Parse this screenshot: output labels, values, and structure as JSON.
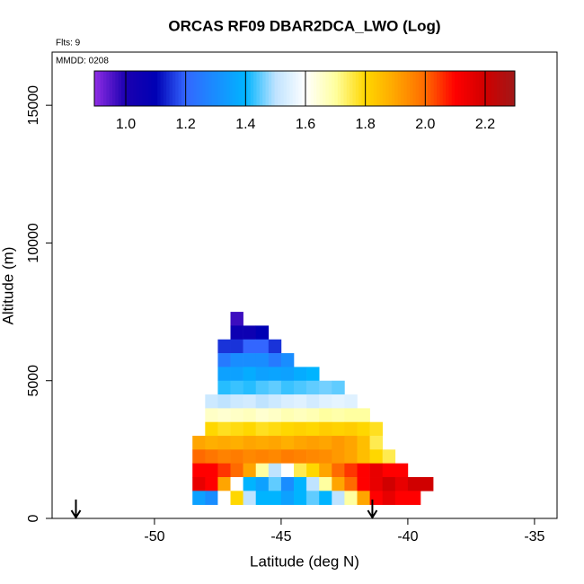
{
  "chart_data": {
    "type": "heatmap",
    "title": "ORCAS RF09 DBAR2DCA_LWO (Log)",
    "flights_label": "Flts: 9",
    "date_label": "MMDD: 0208",
    "x_label": "Latitude (deg N)",
    "y_label": "Altitude (m)",
    "xlim": [
      -54.04,
      -34.11
    ],
    "ylim": [
      0,
      16930
    ],
    "xticks": [
      -50,
      -45,
      -40,
      -35
    ],
    "yticks": [
      0,
      5000,
      10000,
      15000
    ],
    "cell_width": 0.5,
    "cell_height": 500,
    "rows": [
      {
        "altitude": 7000,
        "lat_start": -47.0,
        "values": [
          0.97
        ]
      },
      {
        "altitude": 6500,
        "lat_start": -47.0,
        "values": [
          1.05,
          1.05,
          1.1
        ]
      },
      {
        "altitude": 6000,
        "lat_start": -47.5,
        "values": [
          1.15,
          1.15,
          1.2,
          1.2,
          1.15
        ]
      },
      {
        "altitude": 5500,
        "lat_start": -47.5,
        "values": [
          1.25,
          1.3,
          1.3,
          1.3,
          1.25,
          1.3
        ]
      },
      {
        "altitude": 5000,
        "lat_start": -47.5,
        "values": [
          1.35,
          1.35,
          1.38,
          1.35,
          1.36,
          1.35,
          1.38,
          1.4
        ]
      },
      {
        "altitude": 4500,
        "lat_start": -47.5,
        "values": [
          1.42,
          1.43,
          1.42,
          1.44,
          1.45,
          1.43,
          1.44,
          1.45,
          1.46,
          1.45
        ]
      },
      {
        "altitude": 4000,
        "lat_start": -48.0,
        "values": [
          1.52,
          1.5,
          1.52,
          1.53,
          1.5,
          1.52,
          1.54,
          1.55,
          1.53,
          1.55,
          1.56,
          1.55
        ]
      },
      {
        "altitude": 3500,
        "lat_start": -48.0,
        "values": [
          1.66,
          1.65,
          1.66,
          1.67,
          1.65,
          1.66,
          1.68,
          1.67,
          1.68,
          1.7,
          1.69,
          1.7,
          1.7
        ]
      },
      {
        "altitude": 3000,
        "lat_start": -48.0,
        "values": [
          1.8,
          1.78,
          1.79,
          1.8,
          1.78,
          1.79,
          1.8,
          1.81,
          1.8,
          1.82,
          1.81,
          1.82,
          1.8,
          1.78
        ]
      },
      {
        "altitude": 2500,
        "lat_start": -48.5,
        "values": [
          1.9,
          1.88,
          1.89,
          1.88,
          1.9,
          1.89,
          1.9,
          1.88,
          1.9,
          1.91,
          1.9,
          1.92,
          1.9,
          1.85,
          1.75
        ]
      },
      {
        "altitude": 2000,
        "lat_start": -48.5,
        "values": [
          2.0,
          1.98,
          1.96,
          1.97,
          1.95,
          1.96,
          1.95,
          1.97,
          1.96,
          1.95,
          1.94,
          1.92,
          1.9,
          1.85,
          1.8,
          1.75
        ]
      },
      {
        "altitude": 1500,
        "lat_start": -48.5,
        "values": [
          2.1,
          2.1,
          2.05,
          2.0,
          1.9,
          1.7,
          1.5,
          1.6,
          1.75,
          1.8,
          1.9,
          2.0,
          2.05,
          2.1,
          2.15,
          2.1,
          2.1
        ]
      },
      {
        "altitude": 1000,
        "lat_start": -48.5,
        "values": [
          2.15,
          2.1,
          1.9,
          1.6,
          1.4,
          1.35,
          1.45,
          1.3,
          1.4,
          1.5,
          1.7,
          1.9,
          2.0,
          2.1,
          2.15,
          2.2,
          2.15,
          2.2,
          2.2
        ]
      },
      {
        "altitude": 500,
        "lat_start": -48.5,
        "values": [
          1.35,
          1.3,
          1.6,
          1.8,
          1.5,
          1.4,
          1.4,
          1.35,
          1.4,
          1.45,
          1.4,
          1.5,
          1.7,
          1.9,
          2.1,
          2.15,
          2.1,
          2.1
        ]
      }
    ],
    "colorbar_lim": [
      0.895,
      2.299
    ],
    "colorbar_ticks": [
      {
        "value": 1.0,
        "label": "1.0"
      },
      {
        "value": 1.2,
        "label": "1.2"
      },
      {
        "value": 1.4,
        "label": "1.4"
      },
      {
        "value": 1.6,
        "label": "1.6"
      },
      {
        "value": 1.8,
        "label": "1.8"
      },
      {
        "value": 2.0,
        "label": "2.0"
      },
      {
        "value": 2.2,
        "label": "2.2"
      }
    ],
    "colorscale": [
      [
        0.9,
        "#8a2be2"
      ],
      [
        1.0,
        "#1a00b0"
      ],
      [
        1.1,
        "#0000b4"
      ],
      [
        1.2,
        "#3366ff"
      ],
      [
        1.4,
        "#00b4ff"
      ],
      [
        1.5,
        "#bfe3ff"
      ],
      [
        1.6,
        "#ffffff"
      ],
      [
        1.7,
        "#ffffa0"
      ],
      [
        1.8,
        "#ffd700"
      ],
      [
        1.9,
        "#ffa500"
      ],
      [
        2.0,
        "#ff6a00"
      ],
      [
        2.1,
        "#ff0000"
      ],
      [
        2.2,
        "#d00000"
      ],
      [
        2.3,
        "#a01818"
      ]
    ],
    "arrows_x": [
      -53.1,
      -41.4
    ]
  }
}
